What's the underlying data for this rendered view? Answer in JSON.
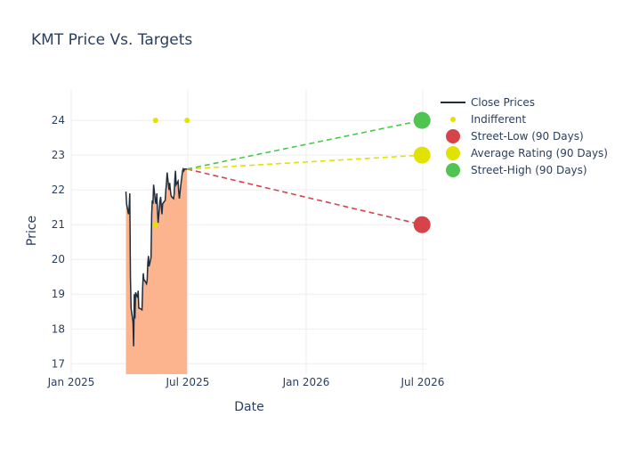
{
  "chart_data": {
    "type": "line",
    "title": "KMT Price Vs. Targets",
    "xlabel": "Date",
    "ylabel": "Price",
    "xlim": [
      "2025-01-01",
      "2026-07-08"
    ],
    "ylim": [
      16.7,
      24.9
    ],
    "x_ticks": [
      {
        "date": "2025-01-01",
        "label": "Jan 2025"
      },
      {
        "date": "2025-07-01",
        "label": "Jul 2025"
      },
      {
        "date": "2026-01-01",
        "label": "Jan 2026"
      },
      {
        "date": "2026-07-01",
        "label": "Jul 2026"
      }
    ],
    "y_ticks": [
      17,
      18,
      19,
      20,
      21,
      22,
      23,
      24
    ],
    "grid": true,
    "legend_position": "top-right",
    "colors": {
      "close": "#1f2d3d",
      "fill": "#fcb48e",
      "indifferent": "#e2e202",
      "street_low": "#d6444a",
      "average": "#e2e202",
      "street_high": "#4fc452",
      "grid": "#eeeeee",
      "text": "#2a3f5f"
    },
    "legend": [
      {
        "label": "Close Prices",
        "kind": "line",
        "color": "#1f2d3d"
      },
      {
        "label": "Indifferent",
        "kind": "small-dot",
        "color": "#e2e202"
      },
      {
        "label": "Street-Low (90 Days)",
        "kind": "big-dot",
        "color": "#d6444a"
      },
      {
        "label": "Average Rating (90 Days)",
        "kind": "big-dot",
        "color": "#e2e202"
      },
      {
        "label": "Street-High (90 Days)",
        "kind": "big-dot",
        "color": "#4fc452"
      }
    ],
    "series": [
      {
        "name": "Close Prices",
        "x": [
          "2025-03-27",
          "2025-03-28",
          "2025-03-31",
          "2025-04-01",
          "2025-04-02",
          "2025-04-03",
          "2025-04-04",
          "2025-04-07",
          "2025-04-08",
          "2025-04-09",
          "2025-04-10",
          "2025-04-11",
          "2025-04-14",
          "2025-04-15",
          "2025-04-16",
          "2025-04-17",
          "2025-04-21",
          "2025-04-22",
          "2025-04-23",
          "2025-04-24",
          "2025-04-25",
          "2025-04-28",
          "2025-04-29",
          "2025-04-30",
          "2025-05-01",
          "2025-05-02",
          "2025-05-05",
          "2025-05-06",
          "2025-05-07",
          "2025-05-08",
          "2025-05-09",
          "2025-05-12",
          "2025-05-13",
          "2025-05-14",
          "2025-05-15",
          "2025-05-16",
          "2025-05-19",
          "2025-05-20",
          "2025-05-21",
          "2025-05-22",
          "2025-05-23",
          "2025-05-27",
          "2025-05-28",
          "2025-05-29",
          "2025-05-30",
          "2025-06-02",
          "2025-06-03",
          "2025-06-04",
          "2025-06-05",
          "2025-06-06",
          "2025-06-09",
          "2025-06-10",
          "2025-06-11",
          "2025-06-12",
          "2025-06-13",
          "2025-06-16",
          "2025-06-17",
          "2025-06-18",
          "2025-06-20",
          "2025-06-23",
          "2025-06-24",
          "2025-06-25",
          "2025-06-26",
          "2025-06-27",
          "2025-06-30"
        ],
        "values": [
          21.95,
          21.6,
          21.3,
          21.5,
          21.9,
          19.5,
          18.6,
          18.2,
          17.5,
          19.0,
          18.3,
          19.05,
          18.9,
          19.1,
          18.6,
          18.6,
          18.55,
          19.2,
          19.6,
          19.4,
          19.4,
          19.3,
          19.4,
          19.9,
          20.1,
          19.8,
          20.05,
          21.3,
          21.7,
          21.6,
          22.15,
          21.65,
          21.6,
          21.9,
          21.4,
          21.05,
          21.7,
          21.8,
          21.5,
          21.3,
          21.6,
          21.7,
          22.0,
          22.2,
          22.5,
          22.0,
          22.2,
          22.0,
          21.85,
          21.8,
          21.75,
          21.9,
          22.3,
          22.55,
          22.15,
          22.25,
          21.95,
          21.75,
          22.1,
          22.55,
          22.6,
          22.55,
          22.6,
          22.6,
          22.6
        ]
      },
      {
        "name": "Indifferent",
        "points": [
          {
            "x": "2025-05-12",
            "y": 24
          },
          {
            "x": "2025-05-12",
            "y": 21
          },
          {
            "x": "2025-06-30",
            "y": 24
          }
        ]
      },
      {
        "name": "Street-Low (90 Days)",
        "points": [
          {
            "x": "2026-06-30",
            "y": 21
          }
        ],
        "from": {
          "x": "2025-06-30",
          "y": 22.6
        }
      },
      {
        "name": "Average Rating (90 Days)",
        "points": [
          {
            "x": "2026-06-30",
            "y": 23
          }
        ],
        "from": {
          "x": "2025-06-30",
          "y": 22.6
        }
      },
      {
        "name": "Street-High (90 Days)",
        "points": [
          {
            "x": "2026-06-30",
            "y": 24
          }
        ],
        "from": {
          "x": "2025-06-30",
          "y": 22.6
        }
      }
    ]
  }
}
